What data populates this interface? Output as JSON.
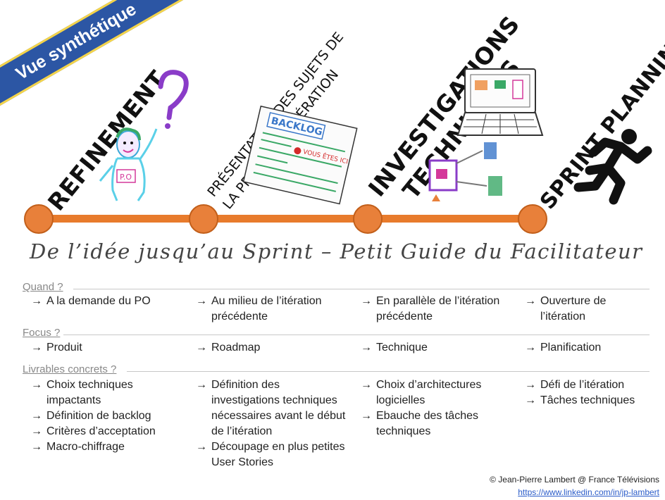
{
  "ribbon": {
    "label": "Vue synthétique"
  },
  "titles": {
    "refinement": "REFINEMENT",
    "presentation_line1": "PRÉSENTATION DES SUJETS DE",
    "presentation_line2": "LA PROCHAINE ITÉRATION",
    "investigations_line1": "INVESTIGATIONS",
    "investigations_line2": "TECHNIQUES",
    "sprint_planning": "SPRINT PLANNING"
  },
  "illustrations": {
    "po_badge": "P.O",
    "backlog_title": "BACKLOG",
    "backlog_marker": "VOUS ÊTES ICI"
  },
  "colors": {
    "timeline": "#e87b2c",
    "ribbon": "#2c56a4",
    "link": "#2b5cc9"
  },
  "subtitle": "De l’idée jusqu’au Sprint – Petit Guide du Facilitateur",
  "sections": {
    "quand": {
      "label": "Quand ?",
      "columns": [
        [
          "A la demande du PO"
        ],
        [
          "Au milieu de l’itération précédente"
        ],
        [
          "En parallèle de l’itération précédente"
        ],
        [
          "Ouverture de l’itération"
        ]
      ]
    },
    "focus": {
      "label": "Focus ?",
      "columns": [
        [
          "Produit"
        ],
        [
          "Roadmap"
        ],
        [
          "Technique"
        ],
        [
          "Planification"
        ]
      ]
    },
    "livrables": {
      "label": "Livrables concrets ?",
      "columns": [
        [
          "Choix techniques impactants",
          "Définition de backlog",
          "Critères d’acceptation",
          "Macro-chiffrage"
        ],
        [
          "Définition des investigations techniques nécessaires avant le début de l’itération",
          "Découpage en plus petites User Stories"
        ],
        [
          "Choix d’architectures logicielles",
          "Ebauche des tâches techniques"
        ],
        [
          "Défi de l’itération",
          "Tâches techniques"
        ]
      ]
    }
  },
  "credit": {
    "author": "© Jean-Pierre Lambert @ France Télévisions",
    "link": "https://www.linkedin.com/in/jp-lambert"
  }
}
